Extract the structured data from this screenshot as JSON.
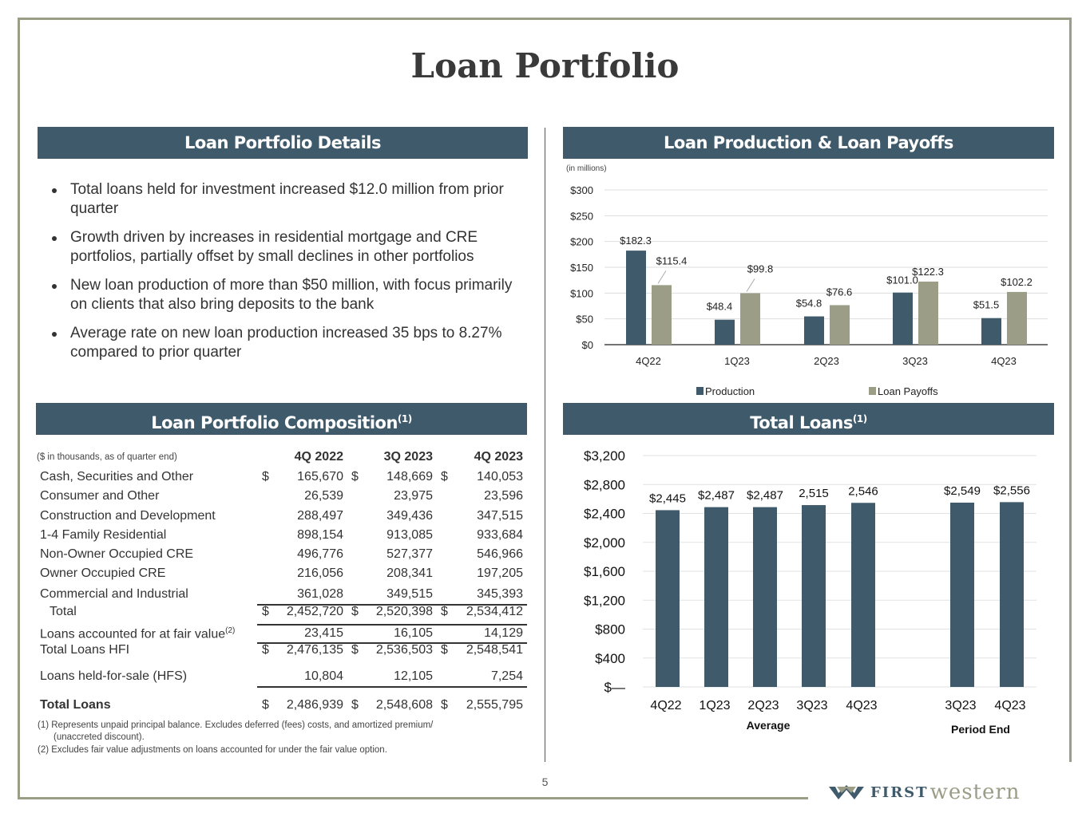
{
  "title": "Loan Portfolio",
  "details": {
    "header": "Loan Portfolio Details",
    "bullets": [
      "Total loans held for investment increased $12.0 million from prior quarter",
      "Growth driven by increases in residential mortgage and CRE portfolios, partially offset by small declines in other portfolios",
      "New loan production of more than $50 million, with focus primarily on clients that also bring deposits to the bank",
      "Average rate on new loan production increased 35 bps to 8.27% compared to prior quarter"
    ]
  },
  "composition": {
    "header": "Loan Portfolio Composition",
    "header_sup": "(1)",
    "units": "($ in thousands, as of quarter end)",
    "columns": [
      "4Q 2022",
      "3Q 2023",
      "4Q 2023"
    ],
    "rows": [
      {
        "label": "Cash, Securities and Other",
        "dollar": true,
        "values": [
          "165,670",
          "148,669",
          "140,053"
        ]
      },
      {
        "label": "Consumer and Other",
        "values": [
          "26,539",
          "23,975",
          "23,596"
        ]
      },
      {
        "label": "Construction and Development",
        "values": [
          "288,497",
          "349,436",
          "347,515"
        ]
      },
      {
        "label": "1-4 Family Residential",
        "values": [
          "898,154",
          "913,085",
          "933,684"
        ]
      },
      {
        "label": "Non-Owner Occupied CRE",
        "values": [
          "496,776",
          "527,377",
          "546,966"
        ]
      },
      {
        "label": "Owner Occupied CRE",
        "values": [
          "216,056",
          "208,341",
          "197,205"
        ]
      },
      {
        "label": "Commercial and Industrial",
        "values": [
          "361,028",
          "349,515",
          "345,393"
        ]
      },
      {
        "label": "Total",
        "dollar": true,
        "values": [
          "2,452,720",
          "2,520,398",
          "2,534,412"
        ]
      },
      {
        "label": "Loans accounted for at fair value",
        "sup": "(2)",
        "values": [
          "23,415",
          "16,105",
          "14,129"
        ]
      },
      {
        "label": "Total Loans HFI",
        "dollar": true,
        "values": [
          "2,476,135",
          "2,536,503",
          "2,548,541"
        ]
      },
      {
        "label": "Loans held-for-sale (HFS)",
        "values": [
          "10,804",
          "12,105",
          "7,254"
        ]
      },
      {
        "label": "Total Loans",
        "dollar": true,
        "bold": true,
        "values": [
          "2,486,939",
          "2,548,608",
          "2,555,795"
        ]
      }
    ],
    "dollar_sign": "$",
    "footnotes": [
      "(1) Represents unpaid principal balance. Excludes deferred (fees) costs, and amortized premium/",
      "(unaccreted discount).",
      "(2)  Excludes  fair value adjustments on loans accounted for under the fair value option."
    ]
  },
  "production": {
    "header": "Loan Production & Loan Payoffs"
  },
  "total_loans": {
    "header": "Total Loans",
    "header_sup": "(1)"
  },
  "page_number": "5",
  "logo": {
    "first": "FIRST",
    "western": "western"
  },
  "colors": {
    "navy": "#3e5a6b",
    "sage": "#9b9d86"
  },
  "chart_data": [
    {
      "type": "bar",
      "title": "Loan Production & Loan Payoffs",
      "note": "(in millions)",
      "categories": [
        "4Q22",
        "1Q23",
        "2Q23",
        "3Q23",
        "4Q23"
      ],
      "series": [
        {
          "name": "Production",
          "color": "#3e5a6b",
          "values": [
            182.3,
            48.4,
            54.8,
            101.0,
            51.5
          ],
          "labels": [
            "$182.3",
            "$48.4",
            "$54.8",
            "$101.0",
            "$51.5"
          ]
        },
        {
          "name": "Loan Payoffs",
          "color": "#9b9d86",
          "values": [
            115.4,
            99.8,
            76.6,
            122.3,
            102.2
          ],
          "labels": [
            "$115.4",
            "$99.8",
            "$76.6",
            "$122.3",
            "$102.2"
          ]
        }
      ],
      "yticks": [
        "$0",
        "$50",
        "$100",
        "$150",
        "$200",
        "$250",
        "$300"
      ],
      "ylim": [
        0,
        300
      ],
      "legend": "bottom",
      "grid": true
    },
    {
      "type": "bar",
      "title": "Total Loans",
      "categories": [
        "4Q22",
        "1Q23",
        "2Q23",
        "3Q23",
        "4Q23",
        "3Q23",
        "4Q23"
      ],
      "groups": [
        {
          "label": "Average",
          "count": 5
        },
        {
          "label": "Period End",
          "count": 2
        }
      ],
      "values": [
        2445,
        2487,
        2487,
        2515,
        2546,
        2549,
        2556
      ],
      "labels": [
        "$2,445",
        "$2,487",
        "$2,487",
        "2,515",
        "2,546",
        "$2,549",
        "$2,556"
      ],
      "yticks": [
        "$—",
        "$400",
        "$800",
        "$1,200",
        "$1,600",
        "$2,000",
        "$2,400",
        "$2,800",
        "$3,200"
      ],
      "ylim": [
        0,
        3200
      ],
      "grid": true
    }
  ]
}
